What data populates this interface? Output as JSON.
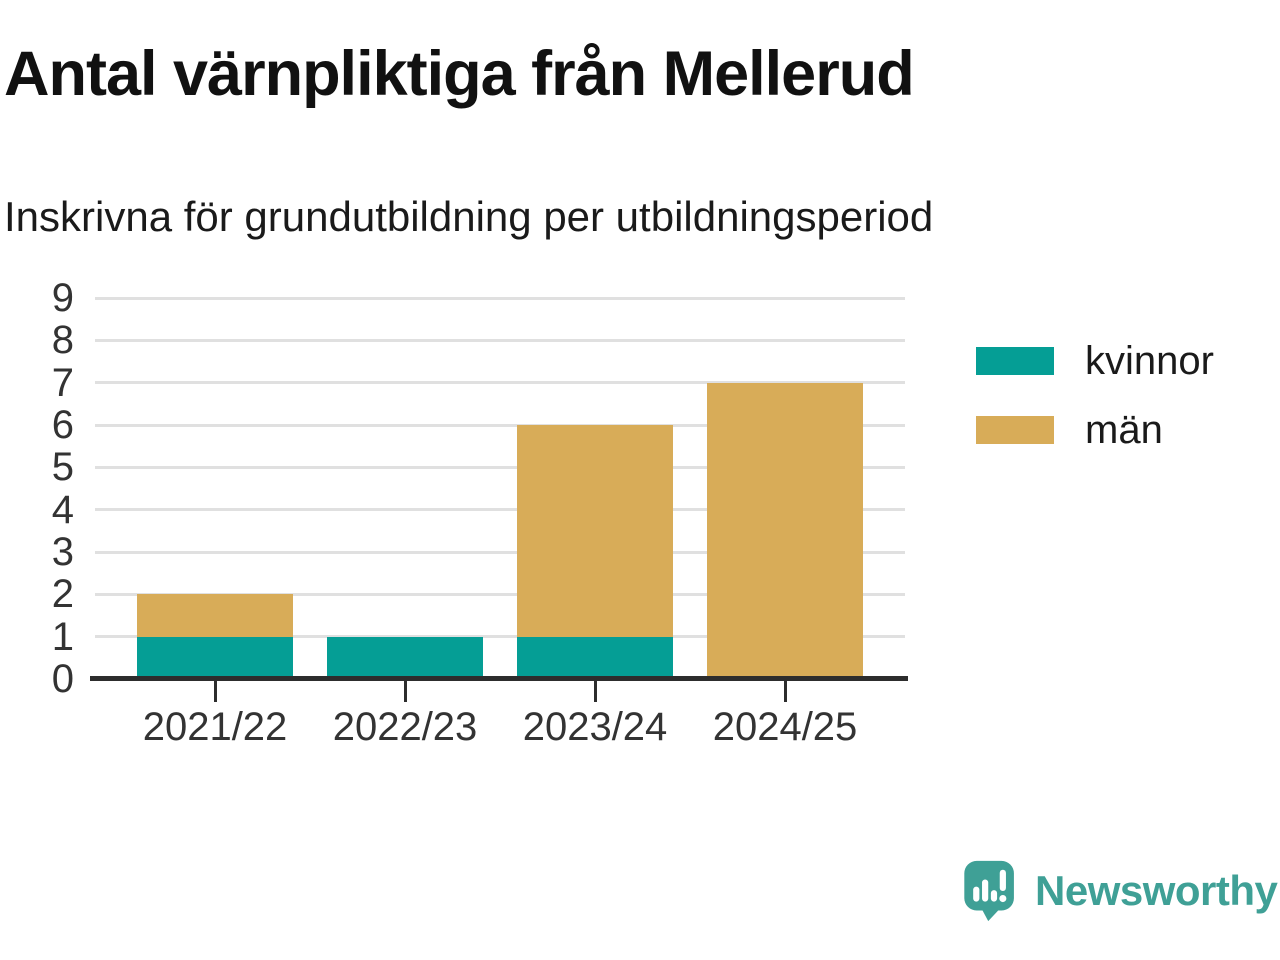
{
  "title": "Antal värnpliktiga från Mellerud",
  "subtitle": "Inskrivna för grundutbildning per utbildningsperiod",
  "chart_data": {
    "type": "bar",
    "stacked": true,
    "title": "Antal värnpliktiga från Mellerud",
    "subtitle": "Inskrivna för grundutbildning per utbildningsperiod",
    "categories": [
      "2021/22",
      "2022/23",
      "2023/24",
      "2024/25"
    ],
    "series": [
      {
        "name": "kvinnor",
        "color": "#059e95",
        "values": [
          1,
          1,
          1,
          0
        ]
      },
      {
        "name": "män",
        "color": "#d8ac58",
        "values": [
          1,
          0,
          5,
          7
        ]
      }
    ],
    "totals": [
      2,
      1,
      6,
      7
    ],
    "ylim": [
      0,
      9
    ],
    "yticks": [
      0,
      1,
      2,
      3,
      4,
      5,
      6,
      7,
      8,
      9
    ],
    "xlabel": "",
    "ylabel": "",
    "grid": true,
    "legend_position": "right"
  },
  "colors": {
    "kvinnor": "#059e95",
    "man": "#d8ac58",
    "gridline": "#e0e0e0",
    "axis": "#2d2d2d",
    "brand_teal": "#3fa096"
  },
  "branding": {
    "logo_text": "Newsworthy"
  }
}
